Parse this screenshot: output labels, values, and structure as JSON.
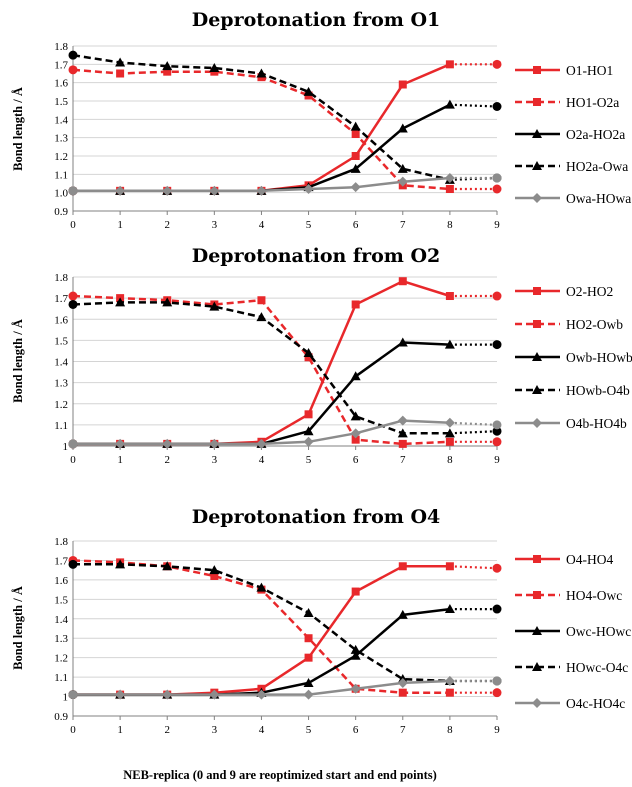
{
  "figure": {
    "xaxis_title": "NEB-replica (0 and 9 are reoptimized  start and end points)"
  },
  "chart_data": [
    {
      "type": "line",
      "title": "Deprotonation from O1",
      "ylabel": "Bond length / Å",
      "ylim": [
        0.9,
        1.8
      ],
      "yticks": [
        "0.9",
        "1.0",
        "1.1",
        "1.2",
        "1.3",
        "1.4",
        "1.5",
        "1.6",
        "1.7",
        "1.8"
      ],
      "x": [
        0,
        1,
        2,
        3,
        4,
        5,
        6,
        7,
        8,
        9
      ],
      "xticks": [
        "0",
        "1",
        "2",
        "3",
        "4",
        "5",
        "6",
        "7",
        "8",
        "9"
      ],
      "grid": "horizontal",
      "legend_position": "right",
      "series": [
        {
          "name": "O1-HO1",
          "color": "#e8282b",
          "dash": "solid",
          "marker": "square",
          "values": [
            1.01,
            1.01,
            1.01,
            1.01,
            1.01,
            1.04,
            1.2,
            1.59,
            1.7,
            1.7
          ]
        },
        {
          "name": "HO1-O2a",
          "color": "#e8282b",
          "dash": "dashed",
          "marker": "square",
          "values": [
            1.67,
            1.65,
            1.66,
            1.66,
            1.63,
            1.53,
            1.32,
            1.04,
            1.02,
            1.02
          ]
        },
        {
          "name": "O2a-HO2a",
          "color": "#000000",
          "dash": "solid",
          "marker": "triangle",
          "values": [
            1.01,
            1.01,
            1.01,
            1.01,
            1.01,
            1.03,
            1.13,
            1.35,
            1.48,
            1.47
          ]
        },
        {
          "name": "HO2a-Owa",
          "color": "#000000",
          "dash": "dashed",
          "marker": "triangle",
          "values": [
            1.75,
            1.71,
            1.69,
            1.68,
            1.65,
            1.55,
            1.36,
            1.13,
            1.07,
            1.08
          ]
        },
        {
          "name": "Owa-HOwa",
          "color": "#8c8c8c",
          "dash": "solid",
          "marker": "diamond",
          "values": [
            1.01,
            1.01,
            1.01,
            1.01,
            1.01,
            1.02,
            1.03,
            1.06,
            1.08,
            1.08
          ]
        }
      ]
    },
    {
      "type": "line",
      "title": "Deprotonation from O2",
      "ylabel": "Bond length / Å",
      "ylim": [
        1.0,
        1.8
      ],
      "yticks": [
        "1",
        "1.1",
        "1.2",
        "1.3",
        "1.4",
        "1.5",
        "1.6",
        "1.7",
        "1.8"
      ],
      "x": [
        0,
        1,
        2,
        3,
        4,
        5,
        6,
        7,
        8,
        9
      ],
      "xticks": [
        "0",
        "1",
        "2",
        "3",
        "4",
        "5",
        "6",
        "7",
        "8",
        "9"
      ],
      "grid": "horizontal",
      "legend_position": "right",
      "series": [
        {
          "name": "O2-HO2",
          "color": "#e8282b",
          "dash": "solid",
          "marker": "square",
          "values": [
            1.01,
            1.01,
            1.01,
            1.01,
            1.02,
            1.15,
            1.67,
            1.78,
            1.71,
            1.71
          ]
        },
        {
          "name": "HO2-Owb",
          "color": "#e8282b",
          "dash": "dashed",
          "marker": "square",
          "values": [
            1.71,
            1.7,
            1.69,
            1.67,
            1.69,
            1.42,
            1.03,
            1.01,
            1.02,
            1.02
          ]
        },
        {
          "name": "Owb-HOwb",
          "color": "#000000",
          "dash": "solid",
          "marker": "triangle",
          "values": [
            1.01,
            1.01,
            1.01,
            1.01,
            1.01,
            1.07,
            1.33,
            1.49,
            1.48,
            1.48
          ]
        },
        {
          "name": "HOwb-O4b",
          "color": "#000000",
          "dash": "dashed",
          "marker": "triangle",
          "values": [
            1.67,
            1.68,
            1.68,
            1.66,
            1.61,
            1.44,
            1.14,
            1.06,
            1.06,
            1.07
          ]
        },
        {
          "name": "O4b-HO4b",
          "color": "#8c8c8c",
          "dash": "solid",
          "marker": "diamond",
          "values": [
            1.01,
            1.01,
            1.01,
            1.01,
            1.01,
            1.02,
            1.06,
            1.12,
            1.11,
            1.1
          ]
        }
      ]
    },
    {
      "type": "line",
      "title": "Deprotonation from O4",
      "ylabel": "Bond length / Å",
      "ylim": [
        0.9,
        1.8
      ],
      "yticks": [
        "0.9",
        "1",
        "1.1",
        "1.2",
        "1.3",
        "1.4",
        "1.5",
        "1.6",
        "1.7",
        "1.8"
      ],
      "x": [
        0,
        1,
        2,
        3,
        4,
        5,
        6,
        7,
        8,
        9
      ],
      "xticks": [
        "0",
        "1",
        "2",
        "3",
        "4",
        "5",
        "6",
        "7",
        "8",
        "9"
      ],
      "grid": "horizontal",
      "legend_position": "right",
      "series": [
        {
          "name": "O4-HO4",
          "color": "#e8282b",
          "dash": "solid",
          "marker": "square",
          "values": [
            1.01,
            1.01,
            1.01,
            1.02,
            1.04,
            1.2,
            1.54,
            1.67,
            1.67,
            1.66
          ]
        },
        {
          "name": "HO4-Owc",
          "color": "#e8282b",
          "dash": "dashed",
          "marker": "square",
          "values": [
            1.7,
            1.69,
            1.67,
            1.62,
            1.55,
            1.3,
            1.04,
            1.02,
            1.02,
            1.02
          ]
        },
        {
          "name": "Owc-HOwc",
          "color": "#000000",
          "dash": "solid",
          "marker": "triangle",
          "values": [
            1.01,
            1.01,
            1.01,
            1.01,
            1.02,
            1.07,
            1.21,
            1.42,
            1.45,
            1.45
          ]
        },
        {
          "name": "HOwc-O4c",
          "color": "#000000",
          "dash": "dashed",
          "marker": "triangle",
          "values": [
            1.68,
            1.68,
            1.67,
            1.65,
            1.56,
            1.43,
            1.24,
            1.09,
            1.08,
            1.08
          ]
        },
        {
          "name": "O4c-HO4c",
          "color": "#8c8c8c",
          "dash": "solid",
          "marker": "diamond",
          "values": [
            1.01,
            1.01,
            1.01,
            1.01,
            1.01,
            1.01,
            1.04,
            1.07,
            1.08,
            1.08
          ]
        }
      ]
    }
  ]
}
